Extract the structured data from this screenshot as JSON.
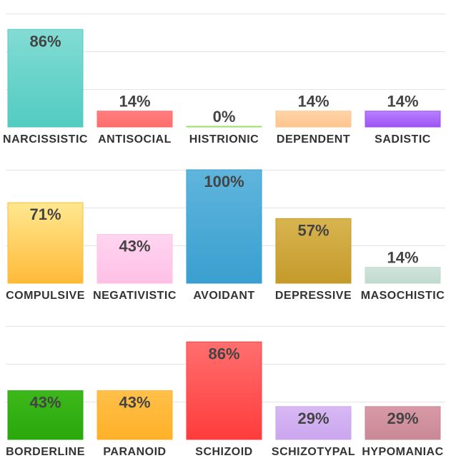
{
  "chart_data": [
    {
      "type": "bar",
      "categories": [
        "NARCISSISTIC",
        "ANTISOCIAL",
        "HISTRIONIC",
        "DEPENDENT",
        "SADISTIC"
      ],
      "values": [
        86,
        14,
        0,
        14,
        14
      ],
      "value_labels": [
        "86%",
        "14%",
        "0%",
        "14%",
        "14%"
      ],
      "colors_top": [
        "#82dcd4",
        "#ff7f7f",
        "#b4ee8a",
        "#ffd4a8",
        "#b880ff"
      ],
      "colors_bottom": [
        "#52cbc1",
        "#ff6b6b",
        "#98e066",
        "#ffc48e",
        "#9e52f4"
      ],
      "ylim": [
        0,
        100
      ],
      "grid": true
    },
    {
      "type": "bar",
      "categories": [
        "COMPULSIVE",
        "NEGATIVISTIC",
        "AVOIDANT",
        "DEPRESSIVE",
        "MASOCHISTIC"
      ],
      "values": [
        71,
        43,
        100,
        57,
        14
      ],
      "value_labels": [
        "71%",
        "43%",
        "100%",
        "57%",
        "14%"
      ],
      "colors_top": [
        "#ffe890",
        "#ffd5f0",
        "#5fb5dc",
        "#d8b450",
        "#d0e4dc"
      ],
      "colors_bottom": [
        "#ffba38",
        "#ffc0e6",
        "#3a9fcf",
        "#c49a2a",
        "#c0dacf"
      ],
      "ylim": [
        0,
        100
      ],
      "grid": true
    },
    {
      "type": "bar",
      "categories": [
        "BORDERLINE",
        "PARANOID",
        "SCHIZOID",
        "SCHIZOTYPAL",
        "HYPOMANIAC"
      ],
      "values": [
        43,
        43,
        86,
        29,
        29
      ],
      "value_labels": [
        "43%",
        "43%",
        "86%",
        "29%",
        "29%"
      ],
      "colors_top": [
        "#3cb81a",
        "#ffc04a",
        "#ff6e6e",
        "#d8b8f4",
        "#d89aa6"
      ],
      "colors_bottom": [
        "#2aa80c",
        "#ffb028",
        "#ff3c3c",
        "#caa6ee",
        "#c98896"
      ],
      "ylim": [
        0,
        100
      ],
      "grid": true
    }
  ]
}
